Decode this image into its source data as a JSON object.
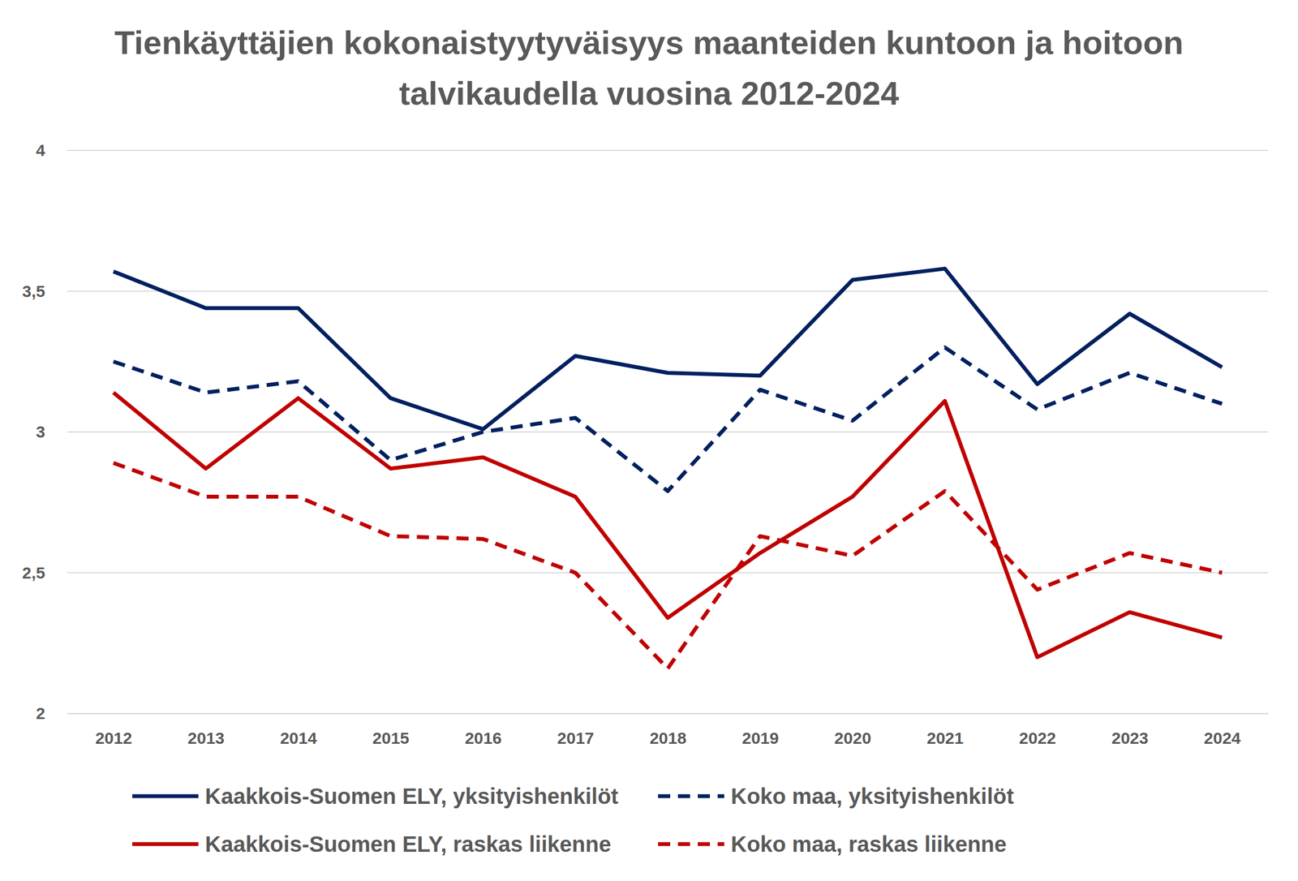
{
  "chart_data": {
    "type": "line",
    "title": "Tienkäyttäjien kokonaistyytyväisyys maanteiden kuntoon ja hoitoon talvikaudella vuosina 2012-2024",
    "categories": [
      "2012",
      "2013",
      "2014",
      "2015",
      "2016",
      "2017",
      "2018",
      "2019",
      "2020",
      "2021",
      "2022",
      "2023",
      "2024"
    ],
    "series": [
      {
        "name": "Kaakkois-Suomen ELY, yksityishenkilöt",
        "color": "#002060",
        "line_style": "solid",
        "values": [
          3.57,
          3.44,
          3.44,
          3.12,
          3.01,
          3.27,
          3.21,
          3.2,
          3.54,
          3.58,
          3.17,
          3.42,
          3.23
        ]
      },
      {
        "name": "Koko maa, yksityishenkilöt",
        "color": "#002060",
        "line_style": "dashed",
        "values": [
          3.25,
          3.14,
          3.18,
          2.9,
          3.0,
          3.05,
          2.79,
          3.15,
          3.04,
          3.3,
          3.08,
          3.21,
          3.1
        ]
      },
      {
        "name": "Kaakkois-Suomen ELY, raskas liikenne",
        "color": "#c00000",
        "line_style": "solid",
        "values": [
          3.14,
          2.87,
          3.12,
          2.87,
          2.91,
          2.77,
          2.34,
          2.57,
          2.77,
          3.11,
          2.2,
          2.36,
          2.27
        ]
      },
      {
        "name": "Koko maa, raskas liikenne",
        "color": "#c00000",
        "line_style": "dashed",
        "values": [
          2.89,
          2.77,
          2.77,
          2.63,
          2.62,
          2.5,
          2.16,
          2.63,
          2.56,
          2.79,
          2.44,
          2.57,
          2.5
        ]
      }
    ],
    "ylim": [
      2,
      4
    ],
    "yticks": [
      2,
      {
        "value": 2.5,
        "label": "2,5"
      },
      3,
      {
        "value": 3.5,
        "label": "3,5"
      },
      4
    ],
    "grid": true,
    "legend": "bottom"
  }
}
